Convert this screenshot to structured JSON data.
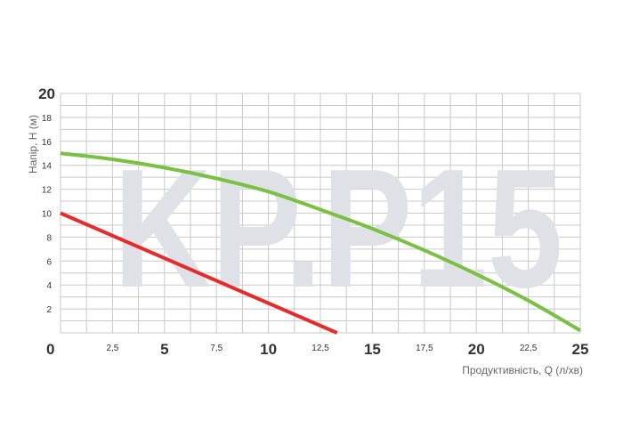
{
  "chart_data": {
    "type": "line",
    "watermark": "KP.P15",
    "xlabel": "Продуктивність, Q (л/хв)",
    "ylabel": "Напір, H (м)",
    "xlim": [
      0,
      25
    ],
    "ylim": [
      0,
      20
    ],
    "grid": true,
    "x_ticks": [
      {
        "value": 0,
        "label": "0",
        "major": true
      },
      {
        "value": 2.5,
        "label": "2,5",
        "major": false
      },
      {
        "value": 5,
        "label": "5",
        "major": true
      },
      {
        "value": 7.5,
        "label": "7,5",
        "major": false
      },
      {
        "value": 10,
        "label": "10",
        "major": true
      },
      {
        "value": 12.5,
        "label": "12,5",
        "major": false
      },
      {
        "value": 15,
        "label": "15",
        "major": true
      },
      {
        "value": 17.5,
        "label": "17,5",
        "major": false
      },
      {
        "value": 20,
        "label": "20",
        "major": true
      },
      {
        "value": 22.5,
        "label": "22,5",
        "major": false
      },
      {
        "value": 25,
        "label": "25",
        "major": true
      }
    ],
    "y_ticks": [
      {
        "value": 2,
        "label": "2",
        "major": false
      },
      {
        "value": 4,
        "label": "4",
        "major": false
      },
      {
        "value": 6,
        "label": "6",
        "major": false
      },
      {
        "value": 8,
        "label": "8",
        "major": false
      },
      {
        "value": 10,
        "label": "10",
        "major": false
      },
      {
        "value": 12,
        "label": "12",
        "major": false
      },
      {
        "value": 14,
        "label": "14",
        "major": false
      },
      {
        "value": 16,
        "label": "16",
        "major": false
      },
      {
        "value": 18,
        "label": "18",
        "major": false
      },
      {
        "value": 20,
        "label": "20",
        "major": true
      }
    ],
    "series": [
      {
        "color": "#7ac143",
        "x": [
          0,
          2.5,
          5,
          7.5,
          10,
          12.5,
          15,
          17.5,
          20,
          22.5,
          25
        ],
        "y": [
          15.0,
          14.5,
          13.8,
          12.9,
          11.8,
          10.3,
          8.7,
          6.9,
          4.9,
          2.7,
          0.2
        ]
      },
      {
        "color": "#e52b2b",
        "x": [
          0,
          13.3
        ],
        "y": [
          10.0,
          0
        ]
      }
    ]
  }
}
